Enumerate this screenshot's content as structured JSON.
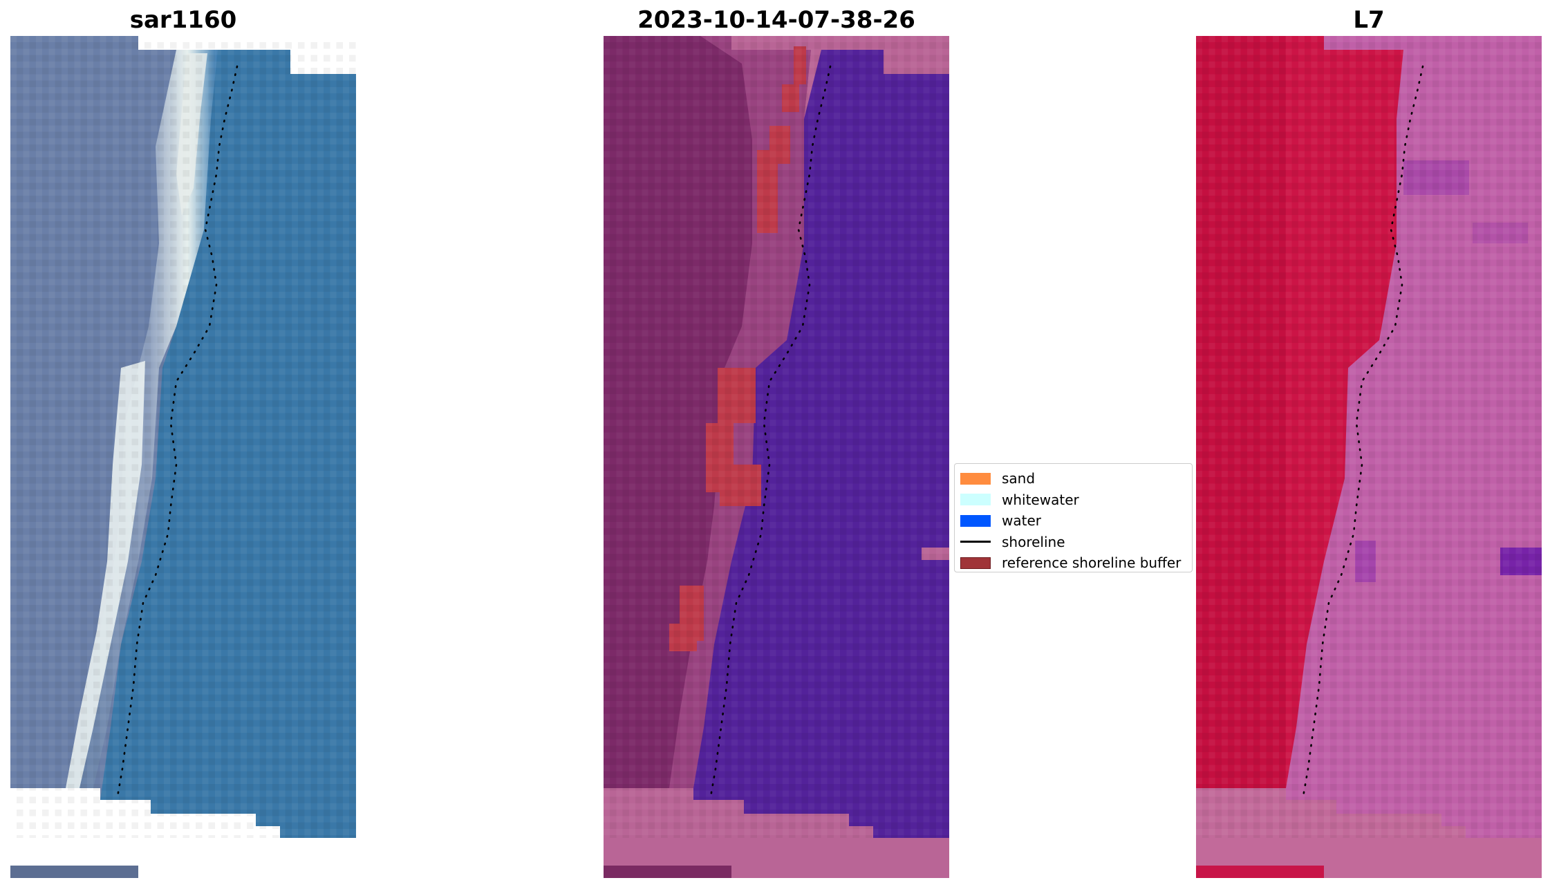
{
  "panels": [
    {
      "title": "sar1160"
    },
    {
      "title": "2023-10-14-07-38-26"
    },
    {
      "title": "L7"
    }
  ],
  "legend": {
    "items": [
      {
        "label": "sand",
        "color": "#ff8c3f",
        "kind": "patch"
      },
      {
        "label": "whitewater",
        "color": "#ccffff",
        "kind": "patch"
      },
      {
        "label": "water",
        "color": "#0057ff",
        "kind": "patch"
      },
      {
        "label": "shoreline",
        "color": "#000000",
        "kind": "line"
      },
      {
        "label": "reference shoreline buffer",
        "color": "#a03438",
        "kind": "patch",
        "edge": "#6e1e22"
      }
    ]
  },
  "colors": {
    "rgb_water": "#3a78a8",
    "rgb_land": "#6a7fa8",
    "rgb_surf": "#e8f2f0",
    "classified_background": "#7c2a68",
    "classified_water": "#53229a",
    "classified_nodata": "#b96596",
    "classified_buffer": "#be3a4a",
    "swir_land": "#cc1446",
    "swir_water": "#c060a8",
    "swir_nodata": "#c26a9a"
  }
}
